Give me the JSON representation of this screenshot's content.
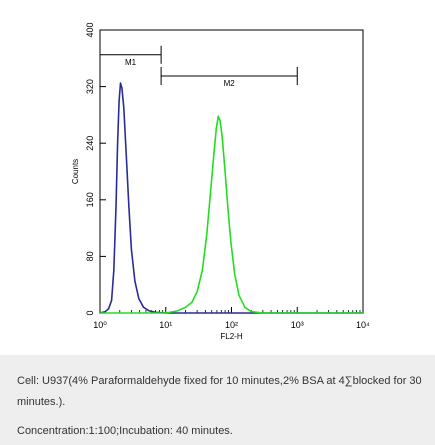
{
  "chart_data": {
    "type": "line",
    "xlabel": "FL2-H",
    "ylabel": "Counts",
    "x_scale": "log",
    "xlim": [
      1,
      10000
    ],
    "ylim": [
      0,
      400
    ],
    "x_tick_labels": [
      "10⁰",
      "10¹",
      "10²",
      "10³",
      "10⁴"
    ],
    "x_tick_values": [
      1,
      10,
      100,
      1000,
      10000
    ],
    "y_ticks": [
      0,
      80,
      160,
      240,
      320,
      400
    ],
    "grid": false,
    "series": [
      {
        "color": "#2b2b99",
        "points": [
          [
            1.0,
            0
          ],
          [
            1.2,
            2
          ],
          [
            1.35,
            6
          ],
          [
            1.5,
            18
          ],
          [
            1.62,
            60
          ],
          [
            1.75,
            150
          ],
          [
            1.85,
            240
          ],
          [
            1.95,
            300
          ],
          [
            2.05,
            325
          ],
          [
            2.15,
            318
          ],
          [
            2.3,
            290
          ],
          [
            2.5,
            225
          ],
          [
            2.75,
            150
          ],
          [
            3.0,
            90
          ],
          [
            3.4,
            45
          ],
          [
            3.9,
            20
          ],
          [
            4.6,
            8
          ],
          [
            5.6,
            3
          ],
          [
            7.0,
            1
          ],
          [
            10.0,
            0
          ],
          [
            10000,
            0
          ]
        ]
      },
      {
        "color": "#22dd22",
        "points": [
          [
            1.0,
            0
          ],
          [
            10.0,
            0
          ],
          [
            15.0,
            3
          ],
          [
            20.0,
            8
          ],
          [
            25.0,
            15
          ],
          [
            30.0,
            30
          ],
          [
            36.0,
            60
          ],
          [
            42.0,
            110
          ],
          [
            48.0,
            170
          ],
          [
            54.0,
            225
          ],
          [
            59.0,
            262
          ],
          [
            63.0,
            278
          ],
          [
            67.0,
            272
          ],
          [
            72.0,
            250
          ],
          [
            80.0,
            200
          ],
          [
            88.0,
            150
          ],
          [
            98.0,
            100
          ],
          [
            112.0,
            55
          ],
          [
            130.0,
            25
          ],
          [
            160.0,
            8
          ],
          [
            200.0,
            2
          ],
          [
            300.0,
            0
          ],
          [
            10000,
            0
          ]
        ]
      }
    ],
    "annotations": [
      {
        "label": "M1",
        "x_from": 1.0,
        "x_to": 8.5,
        "y": 365
      },
      {
        "label": "M2",
        "x_from": 8.5,
        "x_to": 1000,
        "y": 335
      }
    ]
  },
  "caption": {
    "line1": "Cell: U937(4% Paraformaldehyde fixed for 10 minutes,2% BSA at 4∑blocked for 30 minutes.).",
    "line2": "Concentration:1:100;Incubation: 40 minutes."
  },
  "colors": {
    "axis": "#000000",
    "caption_background": "#eeeeee",
    "caption_text": "#333333"
  }
}
